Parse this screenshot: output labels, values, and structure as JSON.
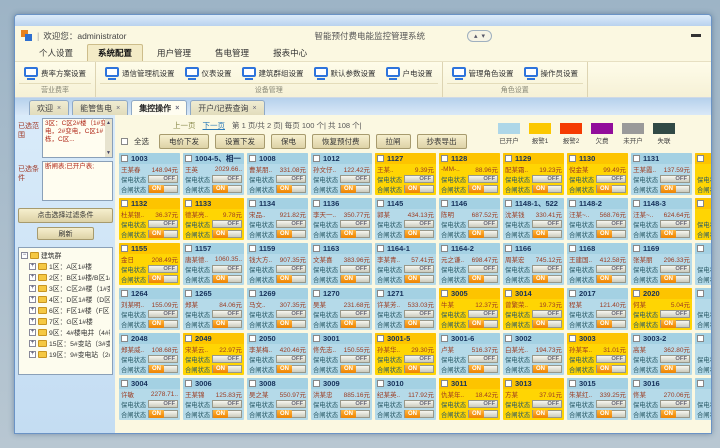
{
  "window": {
    "title_left": "欢迎您：administrator",
    "title_right": "智能预付费电能监控管理系统"
  },
  "menu": {
    "items": [
      {
        "label": "个人设置",
        "active": false
      },
      {
        "label": "系统配置",
        "active": true
      },
      {
        "label": "用户管理",
        "active": false
      },
      {
        "label": "售电管理",
        "active": false
      },
      {
        "label": "报表中心",
        "active": false
      }
    ]
  },
  "ribbon": {
    "groups": [
      {
        "label": "营业费率",
        "buttons": [
          "费率方案设置"
        ]
      },
      {
        "label": "设备管理",
        "buttons": [
          "通信管理机设置",
          "仪表设置",
          "建筑群组设置",
          "默认参数设置",
          "户电设置"
        ]
      },
      {
        "label": "角色设置",
        "buttons": [
          "管理角色设置",
          "操作员设置"
        ]
      }
    ]
  },
  "tabs": [
    {
      "label": "欢迎",
      "active": false
    },
    {
      "label": "能管售电",
      "active": false
    },
    {
      "label": "集控操作",
      "active": true
    },
    {
      "label": "开户/记费查询",
      "active": false
    }
  ],
  "sidebar": {
    "range_label": "已选范围",
    "range_value": "3区：C区2#楼（1#变电，2#变电，C区1#栋，C区...",
    "cond_label": "已选条件",
    "cond_value": "断闸表;已开户表;",
    "filter_button": "点击选择过滤条件",
    "refresh_button": "刷新",
    "tree": {
      "root": "建筑群",
      "items": [
        "1区：A区1#楼",
        "2区：B区1#楼/B区1#楼",
        "3区：C区2#楼（1#变…",
        "4区：D区1#楼（D区1…",
        "6区：F区1#楼（F区1#…",
        "7区：G区1#楼",
        "9区：4#楼电井（4#楼…",
        "15区：5#变站（3#变…",
        "19区：9#变电站（2#…"
      ]
    }
  },
  "toolbar": {
    "pagination": {
      "prev": "上一页",
      "next": "下一页",
      "info": "第  1 页/共  2 页|  每页 100 个|  共  108 个|"
    },
    "select_all": "全选",
    "buttons": [
      "电价下发",
      "设置下发",
      "保电",
      "恢复预付费",
      "拉闸",
      "抄表导出"
    ]
  },
  "legend": [
    {
      "label": "已开户",
      "color": "#aed7e8"
    },
    {
      "label": "报警1",
      "color": "#fcc800"
    },
    {
      "label": "报警2",
      "color": "#f53b02"
    },
    {
      "label": "欠费",
      "color": "#920d9b"
    },
    {
      "label": "未开户",
      "color": "#9a9a9a"
    },
    {
      "label": "失联",
      "color": "#314a46"
    }
  ],
  "status_labels": {
    "power": "保电状态",
    "switch": "合闸状态",
    "on": "ON",
    "off": "OFF"
  },
  "partial_column": [
    "alarm1",
    "alarm1",
    "open",
    "open",
    "open",
    "open"
  ],
  "cards": [
    {
      "room": "1003",
      "name": "王某春",
      "amt": "148.94元",
      "type": "open",
      "power": "OFF",
      "switch": "ON"
    },
    {
      "room": "1004-5、相一",
      "name": "王英",
      "amt": "2029.66..",
      "type": "open",
      "power": "OFF",
      "switch": "ON"
    },
    {
      "room": "1008",
      "name": "曹某朋..",
      "amt": "331.08元",
      "type": "open",
      "power": "OFF",
      "switch": "ON"
    },
    {
      "room": "1012",
      "name": "孙文仔..",
      "amt": "122.42元",
      "type": "open",
      "power": "OFF",
      "switch": "ON"
    },
    {
      "room": "1127",
      "name": "王某..",
      "amt": "9.39元",
      "type": "alarm1",
      "power": "OFF",
      "switch": "ON"
    },
    {
      "room": "1128",
      "name": "-MM-..",
      "amt": "88.96元",
      "type": "alarm1",
      "power": "OFF",
      "switch": "ON"
    },
    {
      "room": "1129",
      "name": "配某霜..",
      "amt": "19.23元",
      "type": "alarm1",
      "power": "OFF",
      "switch": "ON"
    },
    {
      "room": "1130",
      "name": "倪金某",
      "amt": "99.49元",
      "type": "alarm1",
      "power": "OFF",
      "switch": "ON"
    },
    {
      "room": "1131",
      "name": "王某霞..",
      "amt": "137.59元",
      "type": "open",
      "power": "OFF",
      "switch": "ON"
    },
    {
      "room": "1132",
      "name": "杜某银..",
      "amt": "36.37元",
      "type": "alarm1",
      "power": "OFF",
      "switch": "ON"
    },
    {
      "room": "1133",
      "name": "德某亮..",
      "amt": "9.78元",
      "type": "alarm1",
      "power": "OFF",
      "switch": "ON"
    },
    {
      "room": "1134",
      "name": "宋品..",
      "amt": "921.82元",
      "type": "open",
      "power": "OFF",
      "switch": "ON"
    },
    {
      "room": "1136",
      "name": "李天一..",
      "amt": "350.77元",
      "type": "open",
      "power": "OFF",
      "switch": "ON"
    },
    {
      "room": "1145",
      "name": "郭某",
      "amt": "434.13元",
      "type": "open",
      "power": "OFF",
      "switch": "ON"
    },
    {
      "room": "1146",
      "name": "陈明",
      "amt": "687.52元",
      "type": "open",
      "power": "OFF",
      "switch": "ON"
    },
    {
      "room": "1148-1、522",
      "name": "沈某钱",
      "amt": "330.41元",
      "type": "open",
      "power": "OFF",
      "switch": "ON"
    },
    {
      "room": "1148-2",
      "name": "汪某~..",
      "amt": "568.76元",
      "type": "open",
      "power": "OFF",
      "switch": "ON"
    },
    {
      "room": "1148-3",
      "name": "汪某~..",
      "amt": "624.64元",
      "type": "open",
      "power": "OFF",
      "switch": "ON"
    },
    {
      "room": "1155",
      "name": "金日",
      "amt": "208.49元",
      "type": "alarm1",
      "power": "OFF",
      "switch": "ON"
    },
    {
      "room": "1157",
      "name": "唐某德..",
      "amt": "1060.35..",
      "type": "open",
      "power": "OFF",
      "switch": "ON"
    },
    {
      "room": "1159",
      "name": "钱大方..",
      "amt": "907.35元",
      "type": "open",
      "power": "OFF",
      "switch": "ON"
    },
    {
      "room": "1163",
      "name": "文某喜",
      "amt": "383.96元",
      "type": "open",
      "power": "OFF",
      "switch": "ON"
    },
    {
      "room": "1164-1",
      "name": "李某青..",
      "amt": "57.41元",
      "type": "open",
      "power": "OFF",
      "switch": "ON"
    },
    {
      "room": "1164-2",
      "name": "元之谦..",
      "amt": "698.47元",
      "type": "open",
      "power": "OFF",
      "switch": "ON"
    },
    {
      "room": "1166",
      "name": "周某宏",
      "amt": "745.12元",
      "type": "open",
      "power": "OFF",
      "switch": "ON"
    },
    {
      "room": "1168",
      "name": "王建国..",
      "amt": "412.58元",
      "type": "open",
      "power": "OFF",
      "switch": "ON"
    },
    {
      "room": "1169",
      "name": "张某丽",
      "amt": "296.33元",
      "type": "open",
      "power": "OFF",
      "switch": "ON"
    },
    {
      "room": "1264",
      "name": "刘某明..",
      "amt": "155.09元",
      "type": "open",
      "power": "OFF",
      "switch": "ON"
    },
    {
      "room": "1265",
      "name": "郑某",
      "amt": "84.06元",
      "type": "open",
      "power": "OFF",
      "switch": "ON"
    },
    {
      "room": "1269",
      "name": "马文..",
      "amt": "307.35元",
      "type": "open",
      "power": "OFF",
      "switch": "ON"
    },
    {
      "room": "1270",
      "name": "吴某",
      "amt": "231.68元",
      "type": "open",
      "power": "OFF",
      "switch": "ON"
    },
    {
      "room": "1271",
      "name": "许某芳..",
      "amt": "533.03元",
      "type": "open",
      "power": "OFF",
      "switch": "ON"
    },
    {
      "room": "3005",
      "name": "牛某",
      "amt": "12.37元",
      "type": "alarm1",
      "power": "OFF",
      "switch": "ON"
    },
    {
      "room": "3014",
      "name": "曾繁荣..",
      "amt": "19.73元",
      "type": "alarm1",
      "power": "OFF",
      "switch": "ON"
    },
    {
      "room": "2017",
      "name": "程某",
      "amt": "121.40元",
      "type": "open",
      "power": "OFF",
      "switch": "ON"
    },
    {
      "room": "2020",
      "name": "何某",
      "amt": "5.04元",
      "type": "alarm1",
      "power": "OFF",
      "switch": "ON"
    },
    {
      "room": "2048",
      "name": "郑某威..",
      "amt": "108.68元",
      "type": "open",
      "power": "OFF",
      "switch": "ON"
    },
    {
      "room": "2049",
      "name": "宋某云..",
      "amt": "22.97元",
      "type": "alarm1",
      "power": "OFF",
      "switch": "ON"
    },
    {
      "room": "2050",
      "name": "李某梅..",
      "amt": "420.46元",
      "type": "open",
      "power": "OFF",
      "switch": "ON"
    },
    {
      "room": "3001",
      "name": "佟先志..",
      "amt": "150.55元",
      "type": "open",
      "power": "OFF",
      "switch": "ON"
    },
    {
      "room": "3001-5",
      "name": "孙某华..",
      "amt": "29.30元",
      "type": "alarm1",
      "power": "OFF",
      "switch": "ON"
    },
    {
      "room": "3001-6",
      "name": "卢某",
      "amt": "516.37元",
      "type": "open",
      "power": "OFF",
      "switch": "ON"
    },
    {
      "room": "3002",
      "name": "白某光..",
      "amt": "194.73元",
      "type": "open",
      "power": "OFF",
      "switch": "ON"
    },
    {
      "room": "3003",
      "name": "孙某军..",
      "amt": "31.01元",
      "type": "alarm1",
      "power": "OFF",
      "switch": "ON"
    },
    {
      "room": "3003-2",
      "name": "高某",
      "amt": "362.80元",
      "type": "open",
      "power": "OFF",
      "switch": "ON"
    },
    {
      "room": "3004",
      "name": "许敏",
      "amt": "2278.71..",
      "type": "open",
      "power": "OFF",
      "switch": "ON"
    },
    {
      "room": "3006",
      "name": "王某锦",
      "amt": "125.83元",
      "type": "open",
      "power": "OFF",
      "switch": "ON"
    },
    {
      "room": "3008",
      "name": "吴之某",
      "amt": "550.97元",
      "type": "open",
      "power": "OFF",
      "switch": "ON"
    },
    {
      "room": "3009",
      "name": "洪某忠",
      "amt": "885.16元",
      "type": "open",
      "power": "OFF",
      "switch": "ON"
    },
    {
      "room": "3010",
      "name": "纪某英..",
      "amt": "117.92元",
      "type": "open",
      "power": "OFF",
      "switch": "ON"
    },
    {
      "room": "3011",
      "name": "仇某年..",
      "amt": "18.42元",
      "type": "alarm1",
      "power": "OFF",
      "switch": "ON"
    },
    {
      "room": "3013",
      "name": "方某",
      "amt": "37.91元",
      "type": "alarm1",
      "power": "OFF",
      "switch": "ON"
    },
    {
      "room": "3015",
      "name": "朱某红..",
      "amt": "339.25元",
      "type": "open",
      "power": "OFF",
      "switch": "ON"
    },
    {
      "room": "3016",
      "name": "佟某",
      "amt": "270.06元",
      "type": "open",
      "power": "OFF",
      "switch": "ON"
    }
  ]
}
